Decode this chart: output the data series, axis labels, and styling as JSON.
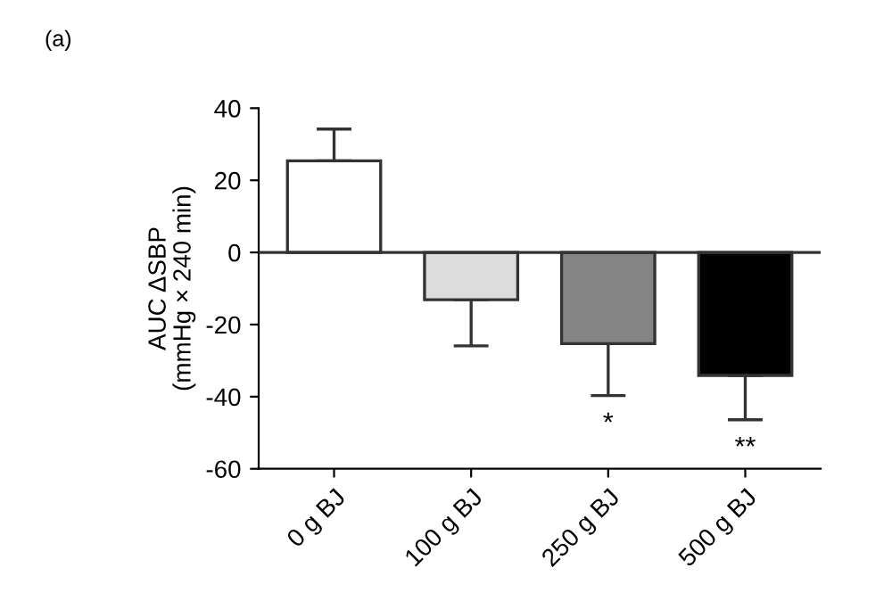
{
  "chart_data": {
    "type": "bar",
    "title": "(a)",
    "ylabel": "AUC ΔSBP\n(mmHg × 240 min)",
    "categories": [
      "0 g BJ",
      "100 g BJ",
      "250 g BJ",
      "500 g BJ"
    ],
    "values": [
      25.4,
      -13.1,
      -25.3,
      -34.1
    ],
    "errors": [
      [
        25.4,
        34.2
      ],
      [
        -25.9,
        -13.1
      ],
      [
        -39.7,
        -25.3
      ],
      [
        -46.4,
        -34.1
      ]
    ],
    "colors": [
      "#ffffff",
      "#dcdcdc",
      "#858585",
      "#000000"
    ],
    "ylim": [
      -60,
      40
    ],
    "yticks": [
      -60,
      -40,
      -20,
      0,
      20,
      40
    ],
    "ref_lines": [
      {
        "axis": "y",
        "value": 0,
        "label": null,
        "color": "#333333"
      }
    ],
    "annotations": [
      "*",
      "**"
    ],
    "grid": false,
    "legend": false
  }
}
